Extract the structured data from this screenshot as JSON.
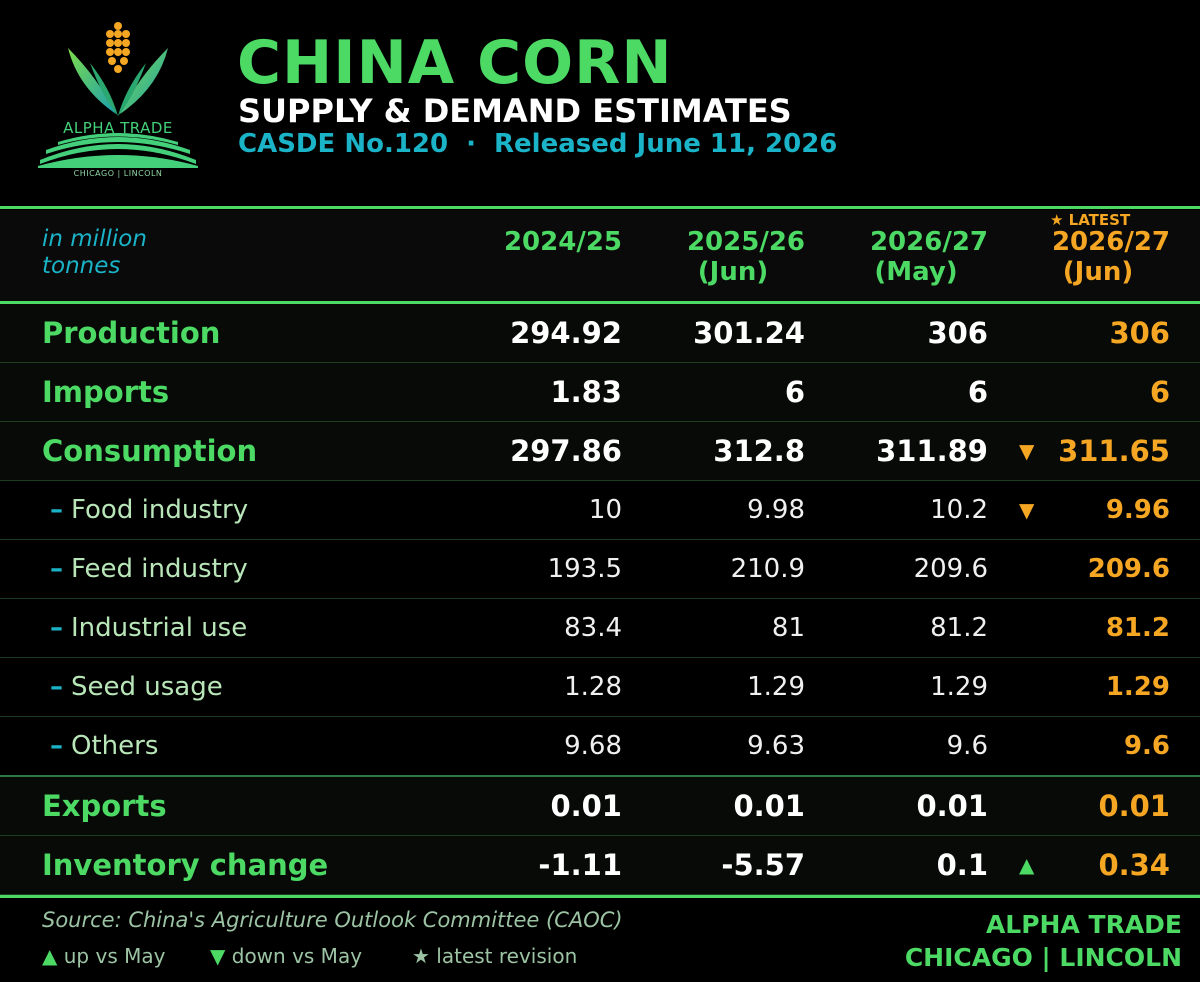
{
  "header": {
    "title": "CHINA CORN",
    "subtitle": "SUPPLY & DEMAND ESTIMATES",
    "report_no": "CASDE No.120",
    "separator": "·",
    "released": "Released June 11, 2026",
    "logo_name": "ALPHA TRADE",
    "logo_sub": "CHICAGO | LINCOLN"
  },
  "table": {
    "unit_line1": "in million",
    "unit_line2": "tonnes",
    "latest_tag": "★ LATEST",
    "columns": [
      {
        "line1": "2024/25",
        "line2": ""
      },
      {
        "line1": "2025/26",
        "line2": "(Jun)"
      },
      {
        "line1": "2026/27",
        "line2": "(May)"
      },
      {
        "line1": "2026/27",
        "line2": "(Jun)"
      }
    ],
    "rows": [
      {
        "label": "Production",
        "values": [
          "294.92",
          "301.24",
          "306",
          "306"
        ],
        "arrow": ""
      },
      {
        "label": "Imports",
        "values": [
          "1.83",
          "6",
          "6",
          "6"
        ],
        "arrow": ""
      },
      {
        "label": "Consumption",
        "values": [
          "297.86",
          "312.8",
          "311.89",
          "311.65"
        ],
        "arrow": "▼"
      },
      {
        "label": "Food industry",
        "values": [
          "10",
          "9.98",
          "10.2",
          "9.96"
        ],
        "arrow": "▼"
      },
      {
        "label": "Feed industry",
        "values": [
          "193.5",
          "210.9",
          "209.6",
          "209.6"
        ],
        "arrow": ""
      },
      {
        "label": "Industrial use",
        "values": [
          "83.4",
          "81",
          "81.2",
          "81.2"
        ],
        "arrow": ""
      },
      {
        "label": "Seed usage",
        "values": [
          "1.28",
          "1.29",
          "1.29",
          "1.29"
        ],
        "arrow": ""
      },
      {
        "label": "Others",
        "values": [
          "9.68",
          "9.63",
          "9.6",
          "9.6"
        ],
        "arrow": ""
      },
      {
        "label": "Exports",
        "values": [
          "0.01",
          "0.01",
          "0.01",
          "0.01"
        ],
        "arrow": ""
      },
      {
        "label": "Inventory change",
        "values": [
          "-1.11",
          "-5.57",
          "0.1",
          "0.34"
        ],
        "arrow": "▲"
      }
    ],
    "sub_dash": "–"
  },
  "footer": {
    "source": "Source: China's Agriculture Outlook Committee (CAOC)",
    "legend_up_symbol": "▲",
    "legend_up": "up vs May",
    "legend_down_symbol": "▼",
    "legend_down": "down vs May",
    "legend_star_symbol": "★",
    "legend_star": "latest revision",
    "brand_line1": "ALPHA TRADE",
    "brand_line2": "CHICAGO | LINCOLN"
  },
  "colors": {
    "accent_green": "#4cd964",
    "accent_teal": "#1ab3c7",
    "accent_orange": "#f5a623",
    "background": "#000000"
  },
  "icons": [
    "corn-logo-icon",
    "up-triangle-icon",
    "down-triangle-icon",
    "star-icon"
  ]
}
